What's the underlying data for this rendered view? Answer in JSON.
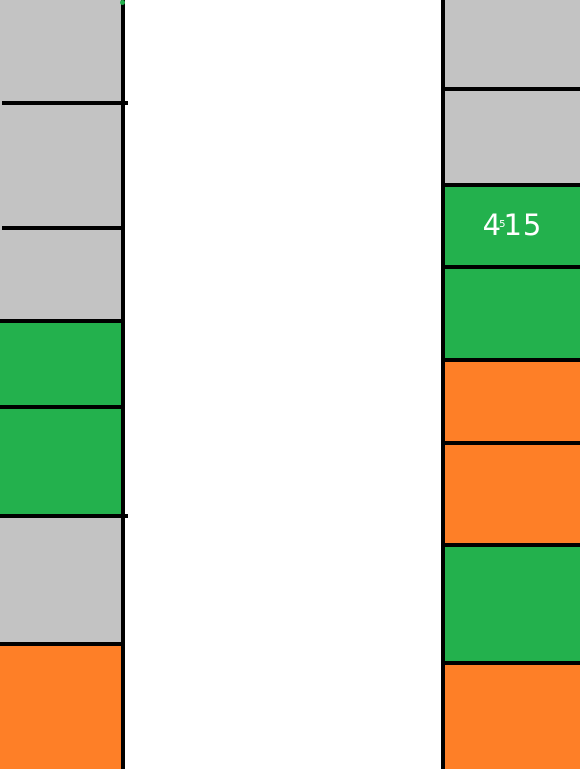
{
  "colors": {
    "gray": "#c3c3c3",
    "green": "#23b14d",
    "orange": "#fe7f27",
    "line": "#000000",
    "background": "#ffffff"
  },
  "left_column": {
    "cells": [
      "gray",
      "gray",
      "gray",
      "green",
      "green",
      "gray",
      "orange"
    ]
  },
  "right_column": {
    "cells": [
      "gray",
      "gray",
      "green",
      "green",
      "orange",
      "orange",
      "green",
      "orange"
    ],
    "label_cell": {
      "digit_a": "4",
      "digit_small": "5",
      "digits_b": "15"
    }
  }
}
